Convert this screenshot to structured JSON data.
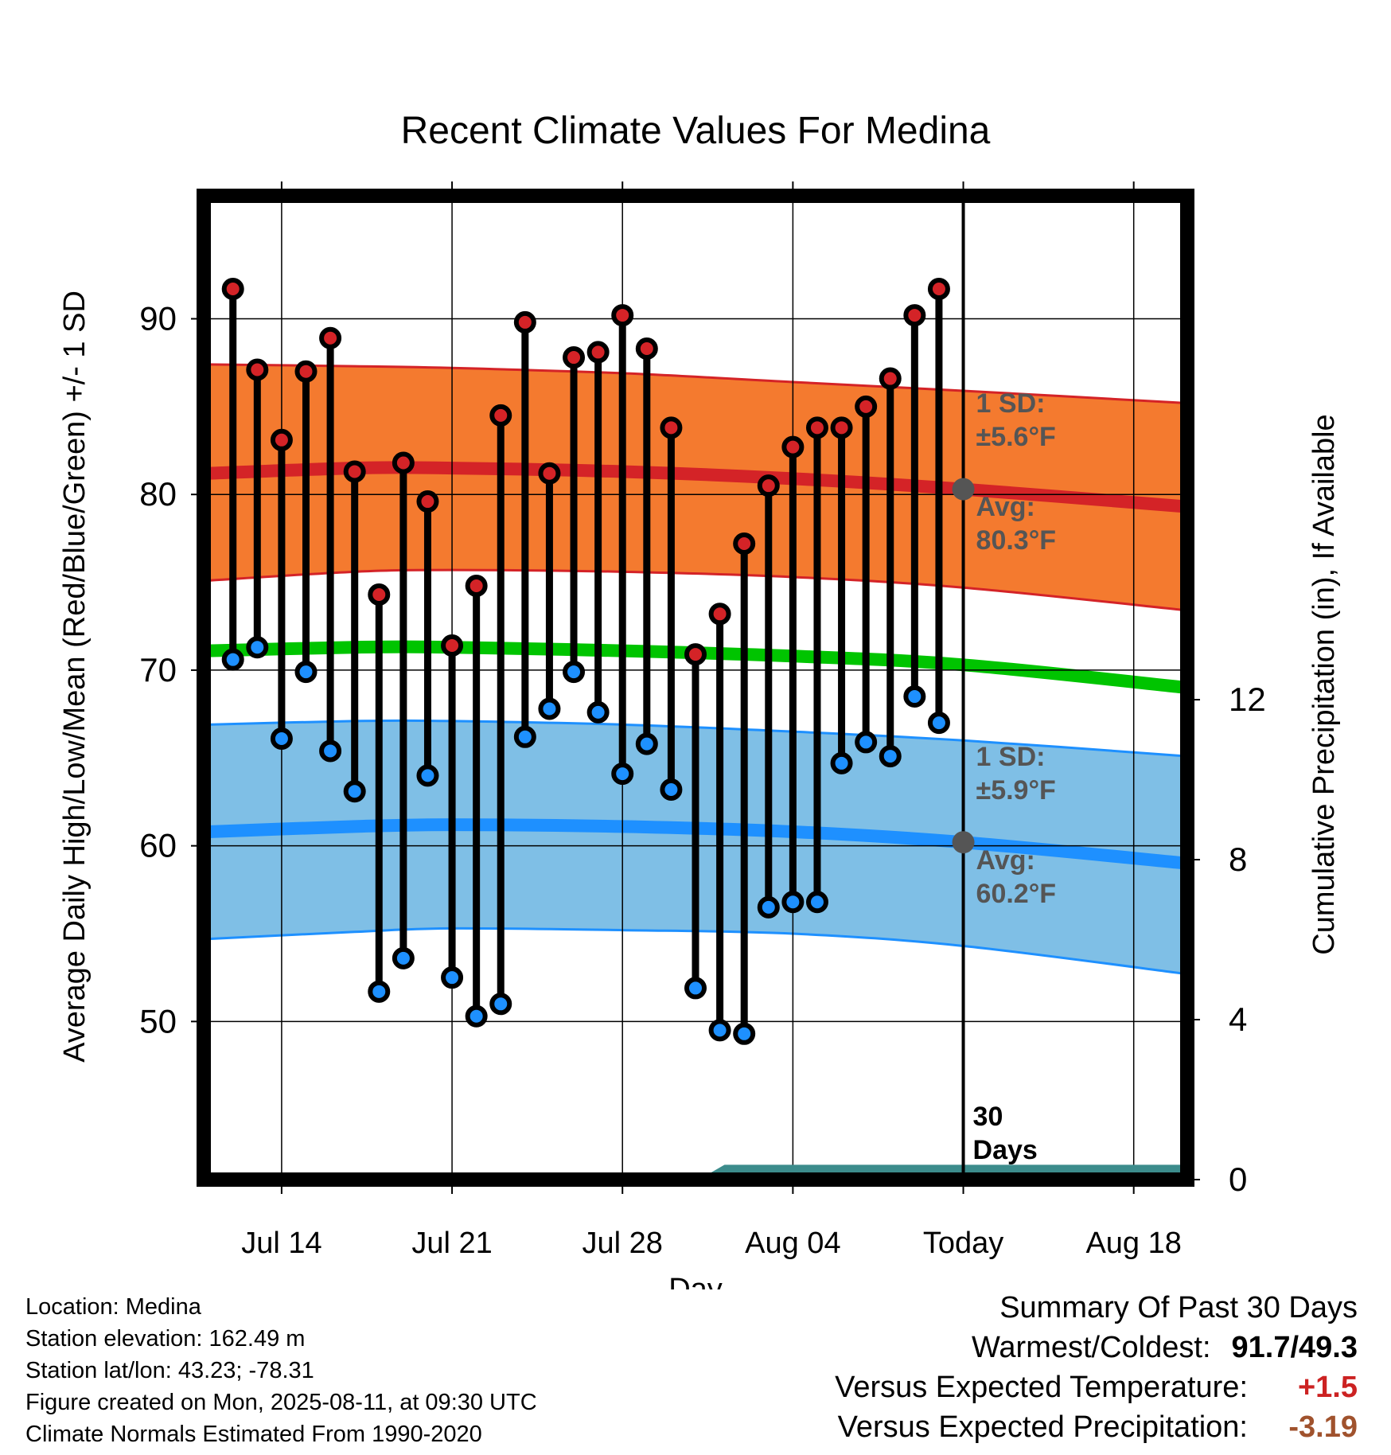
{
  "chart_data": {
    "type": "line",
    "title": "Recent Climate Values For Medina",
    "xlabel": "Day",
    "ylabel": "Average Daily High/Low/Mean (Red/Blue/Green) +/- 1 SD",
    "y2label": "Cumulative Precipitation (in), If Available",
    "ylim": [
      41,
      97
    ],
    "y2lim": [
      0,
      24.6
    ],
    "yticks": [
      "50",
      "60",
      "70",
      "80",
      "90"
    ],
    "y2ticks": [
      "0",
      "4",
      "8",
      "12"
    ],
    "xticks": [
      {
        "day": 14,
        "label": "Jul 14"
      },
      {
        "day": 21,
        "label": "Jul 21"
      },
      {
        "day": 28,
        "label": "Jul 28"
      },
      {
        "day": 35,
        "label": "Aug 04"
      },
      {
        "day": 42,
        "label": "Today"
      },
      {
        "day": 49,
        "label": "Aug 18"
      }
    ],
    "x_range_days": [
      10.8,
      51.2
    ],
    "grid": true,
    "days": [
      12,
      13,
      14,
      15,
      16,
      17,
      18,
      19,
      20,
      21,
      22,
      23,
      24,
      25,
      26,
      27,
      28,
      29,
      30,
      31,
      32,
      33,
      34,
      35,
      36,
      37,
      38,
      39,
      40,
      41
    ],
    "series": [
      {
        "name": "High",
        "color": "#d42327",
        "values": [
          91.7,
          87.1,
          83.1,
          87.0,
          88.9,
          81.3,
          74.3,
          81.8,
          79.6,
          71.4,
          74.8,
          84.5,
          89.8,
          81.2,
          87.8,
          88.1,
          90.2,
          88.3,
          83.8,
          70.9,
          73.2,
          77.2,
          80.5,
          82.7,
          83.8,
          83.8,
          85.0,
          86.6,
          90.2,
          91.7
        ]
      },
      {
        "name": "Low",
        "color": "#1e90ff",
        "values": [
          70.6,
          71.3,
          66.1,
          69.9,
          65.4,
          63.1,
          51.7,
          53.6,
          64.0,
          52.5,
          50.3,
          51.0,
          66.2,
          67.8,
          69.9,
          67.6,
          64.1,
          65.8,
          63.2,
          51.9,
          49.5,
          49.3,
          56.5,
          56.8,
          56.8,
          64.7,
          65.9,
          65.1,
          68.5,
          67.0
        ]
      }
    ],
    "normals": {
      "days": [
        11,
        17,
        21,
        28,
        35,
        42,
        51.2
      ],
      "high_avg": [
        81.2,
        81.5,
        81.5,
        81.3,
        80.9,
        80.3,
        79.3
      ],
      "high_sd_upper": [
        87.4,
        87.3,
        87.2,
        86.9,
        86.4,
        85.9,
        85.2
      ],
      "high_sd_lower": [
        75.1,
        75.6,
        75.7,
        75.6,
        75.3,
        74.7,
        73.4
      ],
      "mean_avg": [
        71.1,
        71.3,
        71.3,
        71.1,
        70.8,
        70.3,
        69.0
      ],
      "low_avg": [
        60.8,
        61.1,
        61.2,
        61.1,
        60.8,
        60.2,
        59.0
      ],
      "low_sd_upper": [
        66.9,
        67.1,
        67.1,
        66.9,
        66.5,
        66.0,
        65.1
      ],
      "low_sd_lower": [
        54.7,
        55.1,
        55.3,
        55.2,
        55.0,
        54.3,
        52.7
      ],
      "colors": {
        "high_band": "#f47a2f",
        "high_line": "#d42327",
        "mean_line": "#00c400",
        "low_band": "#7fbfe6",
        "low_line": "#1e90ff"
      }
    },
    "precip_cumulative": {
      "color": "#3c8c8c",
      "days": [
        31.2,
        32.2,
        42,
        51.2
      ],
      "values": [
        0,
        0.35,
        0.35,
        0.35
      ]
    },
    "today_day": 42,
    "annotations": {
      "high_sd_1": "1 SD:",
      "high_sd_2": "±5.6°F",
      "high_avg_1": "Avg:",
      "high_avg_2": "80.3°F",
      "low_sd_1": "1 SD:",
      "low_sd_2": "±5.9°F",
      "low_avg_1": "Avg:",
      "low_avg_2": "60.2°F",
      "days_1": "30",
      "days_2": "Days"
    },
    "annotation_color": "#555555"
  },
  "footer": {
    "location": "Location: Medina",
    "elevation": "Station elevation: 162.49 m",
    "latlon": "Station lat/lon: 43.23; -78.31",
    "created": "Figure created on Mon, 2025-08-11, at 09:30 UTC",
    "normals": "Climate Normals Estimated From 1990-2020"
  },
  "summary": {
    "title": "Summary Of Past 30 Days",
    "warm_cold_label": "Warmest/Coldest:",
    "warm_cold_value": "91.7/49.3",
    "temp_label": "Versus Expected Temperature:",
    "temp_value": "+1.5",
    "temp_color": "#cc2222",
    "precip_label": "Versus Expected Precipitation:",
    "precip_value": "-3.19",
    "precip_color": "#a0522d"
  }
}
